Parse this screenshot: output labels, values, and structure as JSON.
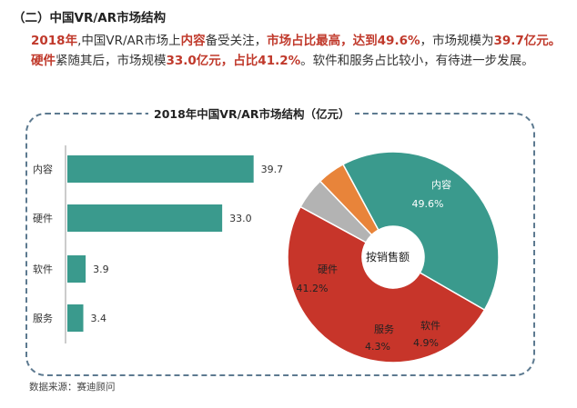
{
  "heading": "（二）中国VR/AR市场结构",
  "intro": {
    "s1": "2018年",
    "s2": ",中国VR/AR市场上",
    "s3": "内容",
    "s4": "备受关注，",
    "s5": "市场占比最高，达到49.6%",
    "s6": "，市场规模为",
    "s7": "39.7亿元。",
    "s8": "硬件",
    "s9": "紧随其后，市场规模",
    "s10": "33.0亿元，占比41.2%",
    "s11": "。软件和服务占比较小，有待进一步发展。"
  },
  "source": "数据来源：赛迪顾问",
  "colors": {
    "teal": "#3a9a8d",
    "red": "#c7352a",
    "gray": "#b3b3b3",
    "orange": "#e8843a",
    "dash": "#5d7a90"
  },
  "chart_data": [
    {
      "type": "bar",
      "orientation": "horizontal",
      "title": "2018年中国VR/AR市场结构（亿元）",
      "categories": [
        "内容",
        "硬件",
        "软件",
        "服务"
      ],
      "values": [
        39.7,
        33.0,
        3.9,
        3.4
      ],
      "value_labels": [
        "39.7",
        "33.0",
        "3.9",
        "3.4"
      ],
      "xlim": [
        0,
        45
      ],
      "xlabel": "",
      "ylabel": "",
      "grid": false,
      "legend": "none"
    },
    {
      "type": "pie",
      "style": "donut",
      "center_label": "按销售额",
      "labels": [
        "内容",
        "软件",
        "服务",
        "硬件"
      ],
      "values": [
        49.6,
        4.9,
        4.3,
        41.2
      ],
      "value_labels": [
        "49.6%",
        "4.9%",
        "4.3%",
        "41.2%"
      ],
      "colors": [
        "#c7352a",
        "#b3b3b3",
        "#e8843a",
        "#3a9a8d"
      ]
    }
  ]
}
